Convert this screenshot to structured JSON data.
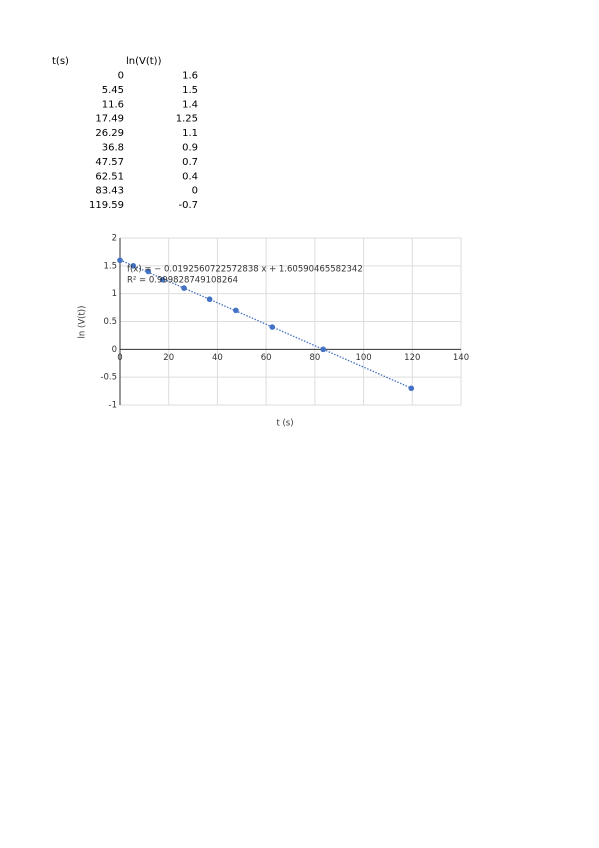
{
  "table": {
    "headers": [
      "t(s)",
      "ln(V(t))"
    ],
    "rows": [
      [
        0,
        1.6
      ],
      [
        5.45,
        1.5
      ],
      [
        11.6,
        1.4
      ],
      [
        17.49,
        1.25
      ],
      [
        26.29,
        1.1
      ],
      [
        36.8,
        0.9
      ],
      [
        47.57,
        0.7
      ],
      [
        62.51,
        0.4
      ],
      [
        83.43,
        0
      ],
      [
        119.59,
        -0.7
      ]
    ]
  },
  "chart_data": {
    "type": "scatter",
    "x_label": "t (s)",
    "y_label": "ln (V(t))",
    "x": [
      0,
      5.45,
      11.6,
      17.49,
      26.29,
      36.8,
      47.57,
      62.51,
      83.43,
      119.59
    ],
    "values": [
      1.6,
      1.5,
      1.4,
      1.25,
      1.1,
      0.9,
      0.7,
      0.4,
      0,
      -0.7
    ],
    "color": "#4472c4",
    "xlim": [
      0,
      140
    ],
    "xticks": [
      0,
      20,
      40,
      60,
      80,
      100,
      120,
      140
    ],
    "ylim": [
      -1,
      2
    ],
    "yticks": [
      -1,
      -0.5,
      0,
      0.5,
      1,
      1.5,
      2
    ],
    "grid": true,
    "trendline": {
      "slope": -0.0192560722572838,
      "intercept": 1.60590465582342,
      "equation": "f(x) = − 0.0192560722572838 x + 1.60590465582342",
      "r2": "R² = 0.999828749108264"
    }
  }
}
